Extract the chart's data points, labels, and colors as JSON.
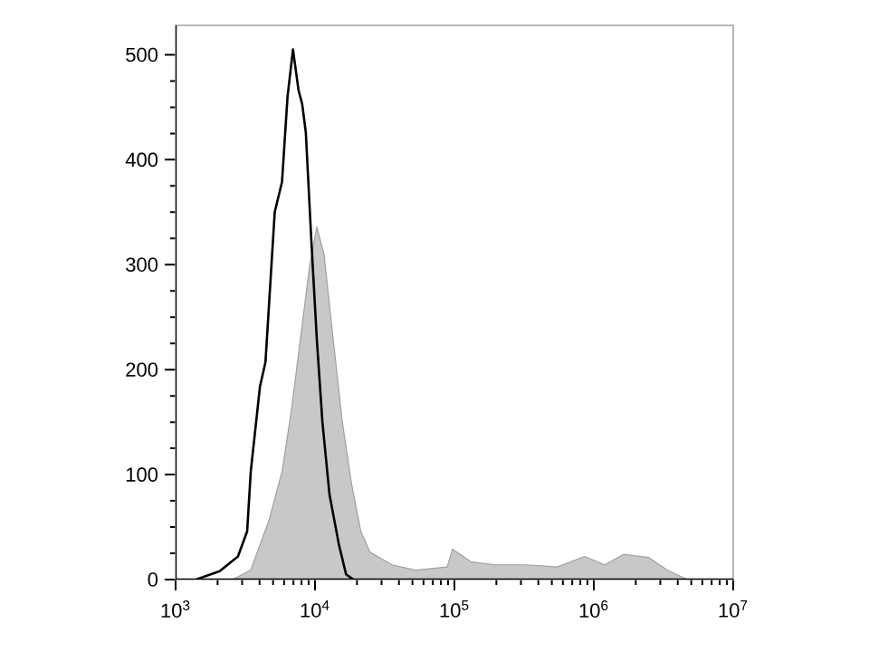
{
  "chart_data": {
    "type": "area",
    "log": "x",
    "xlim": [
      1000,
      10000000
    ],
    "ylim": [
      0,
      528
    ],
    "xticks": [
      {
        "value": 1000,
        "label": "10$^{3}$"
      },
      {
        "value": 10000,
        "label": "10$^{4}$"
      },
      {
        "value": 100000,
        "label": "10$^{5}$"
      },
      {
        "value": 1000000,
        "label": "10$^{6}$"
      },
      {
        "value": 10000000,
        "label": "10$^{7}$"
      }
    ],
    "yticks": [
      0,
      100,
      200,
      300,
      400,
      500
    ],
    "grid": false,
    "series": [
      {
        "color": "#c8c8c8",
        "x": [
          2560,
          3460,
          4690,
          5800,
          6750,
          7850,
          9130,
          10300,
          11600,
          13500,
          15700,
          18300,
          21300,
          24800,
          35700,
          52900,
          88600,
          97000,
          131000,
          195000,
          326000,
          546000,
          859000,
          1200000,
          1630000,
          2480000,
          3360000,
          4690000
        ],
        "values": [
          0,
          9,
          57,
          103,
          160,
          229,
          298,
          336,
          310,
          229,
          150,
          91,
          46,
          26,
          14,
          9,
          12,
          29,
          17,
          14,
          14,
          12,
          22,
          14,
          24,
          21,
          9,
          0
        ]
      },
      {
        "type": "line",
        "color": "#000000",
        "x": [
          1400,
          2070,
          2800,
          3260,
          3460,
          4030,
          4410,
          5140,
          5800,
          6350,
          6950,
          7620,
          8090,
          8590,
          9420,
          10300,
          11300,
          12700,
          14800,
          16700,
          18900
        ],
        "values": [
          0,
          8,
          22,
          46,
          103,
          184,
          207,
          350,
          379,
          460,
          505,
          466,
          453,
          426,
          322,
          229,
          150,
          81,
          34,
          5,
          0
        ]
      }
    ]
  }
}
